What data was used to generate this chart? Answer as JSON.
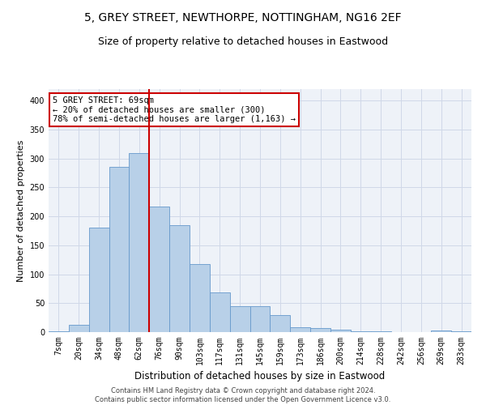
{
  "title1": "5, GREY STREET, NEWTHORPE, NOTTINGHAM, NG16 2EF",
  "title2": "Size of property relative to detached houses in Eastwood",
  "xlabel": "Distribution of detached houses by size in Eastwood",
  "ylabel": "Number of detached properties",
  "bar_color": "#b8d0e8",
  "bar_edge_color": "#6699cc",
  "bin_labels": [
    "7sqm",
    "20sqm",
    "34sqm",
    "48sqm",
    "62sqm",
    "76sqm",
    "90sqm",
    "103sqm",
    "117sqm",
    "131sqm",
    "145sqm",
    "159sqm",
    "173sqm",
    "186sqm",
    "200sqm",
    "214sqm",
    "228sqm",
    "242sqm",
    "256sqm",
    "269sqm",
    "283sqm"
  ],
  "bar_heights": [
    2,
    13,
    180,
    285,
    310,
    217,
    185,
    117,
    68,
    45,
    45,
    30,
    8,
    7,
    4,
    2,
    2,
    0,
    0,
    3,
    2
  ],
  "property_bin_index": 5,
  "vline_color": "#cc0000",
  "annotation_line1": "5 GREY STREET: 69sqm",
  "annotation_line2": "← 20% of detached houses are smaller (300)",
  "annotation_line3": "78% of semi-detached houses are larger (1,163) →",
  "annotation_box_color": "#cc0000",
  "annotation_box_fill": "#ffffff",
  "ylim": [
    0,
    420
  ],
  "yticks": [
    0,
    50,
    100,
    150,
    200,
    250,
    300,
    350,
    400
  ],
  "grid_color": "#d0d8e8",
  "bg_color": "#eef2f8",
  "footer_text": "Contains HM Land Registry data © Crown copyright and database right 2024.\nContains public sector information licensed under the Open Government Licence v3.0.",
  "title1_fontsize": 10,
  "title2_fontsize": 9,
  "xlabel_fontsize": 8.5,
  "ylabel_fontsize": 8,
  "tick_fontsize": 7,
  "annotation_fontsize": 7.5,
  "footer_fontsize": 6
}
